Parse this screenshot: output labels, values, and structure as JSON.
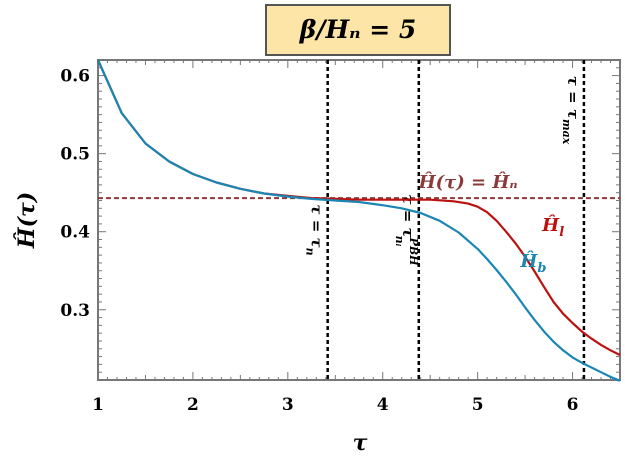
{
  "chart_data": {
    "type": "line",
    "title": "β/Hₙ = 5",
    "xlabel": "τ",
    "ylabel": "Ĥ(τ)",
    "xlim": [
      1,
      6.5
    ],
    "ylim": [
      0.21,
      0.62
    ],
    "xticks": [
      1,
      2,
      3,
      4,
      5,
      6
    ],
    "yticks": [
      0.3,
      0.4,
      0.5,
      0.6
    ],
    "grid": false,
    "series": [
      {
        "name": "Ĥl",
        "color": "#bb1111",
        "x": [
          1.0,
          1.25,
          1.5,
          1.75,
          2.0,
          2.25,
          2.5,
          2.75,
          3.0,
          3.25,
          3.5,
          3.75,
          4.0,
          4.25,
          4.5,
          4.75,
          4.9,
          5.0,
          5.1,
          5.2,
          5.3,
          5.4,
          5.5,
          5.6,
          5.7,
          5.8,
          5.9,
          6.0,
          6.1,
          6.2,
          6.3,
          6.4,
          6.5
        ],
        "y": [
          0.62,
          0.552,
          0.513,
          0.49,
          0.474,
          0.463,
          0.455,
          0.449,
          0.446,
          0.443,
          0.442,
          0.441,
          0.441,
          0.441,
          0.441,
          0.439,
          0.436,
          0.432,
          0.425,
          0.414,
          0.4,
          0.385,
          0.368,
          0.349,
          0.329,
          0.31,
          0.295,
          0.283,
          0.272,
          0.263,
          0.255,
          0.248,
          0.242
        ]
      },
      {
        "name": "Ĥb",
        "color": "#1a86b4",
        "x": [
          1.0,
          1.25,
          1.5,
          1.75,
          2.0,
          2.25,
          2.5,
          2.75,
          3.0,
          3.25,
          3.5,
          3.75,
          4.0,
          4.2,
          4.4,
          4.6,
          4.8,
          5.0,
          5.1,
          5.2,
          5.3,
          5.4,
          5.5,
          5.6,
          5.7,
          5.8,
          5.9,
          6.0,
          6.1,
          6.2,
          6.3,
          6.4,
          6.5
        ],
        "y": [
          0.62,
          0.552,
          0.513,
          0.49,
          0.474,
          0.463,
          0.455,
          0.449,
          0.445,
          0.442,
          0.44,
          0.438,
          0.434,
          0.43,
          0.424,
          0.414,
          0.399,
          0.378,
          0.365,
          0.351,
          0.336,
          0.32,
          0.303,
          0.287,
          0.272,
          0.259,
          0.248,
          0.239,
          0.232,
          0.226,
          0.22,
          0.214,
          0.209
        ]
      }
    ],
    "reference_line": {
      "y": 0.443,
      "label": "Ĥ(τ) = Ĥₙ",
      "color": "#8b3a3a"
    },
    "vlines": [
      {
        "x": 3.42,
        "label_main": "τ = τ",
        "label_sub": "n",
        "label_sup": ""
      },
      {
        "x": 4.38,
        "label_main": "τ = τ",
        "label_sub": "nᵢ",
        "label_sup": "PBH"
      },
      {
        "x": 6.12,
        "label_main": "τ = τ",
        "label_sub": "max",
        "label_sup": ""
      }
    ],
    "series_labels": [
      {
        "text": "Ĥ",
        "sub": "l",
        "x": 5.68,
        "y": 0.401
      },
      {
        "text": "Ĥ",
        "sub": "b",
        "x": 5.45,
        "y": 0.355
      }
    ]
  }
}
